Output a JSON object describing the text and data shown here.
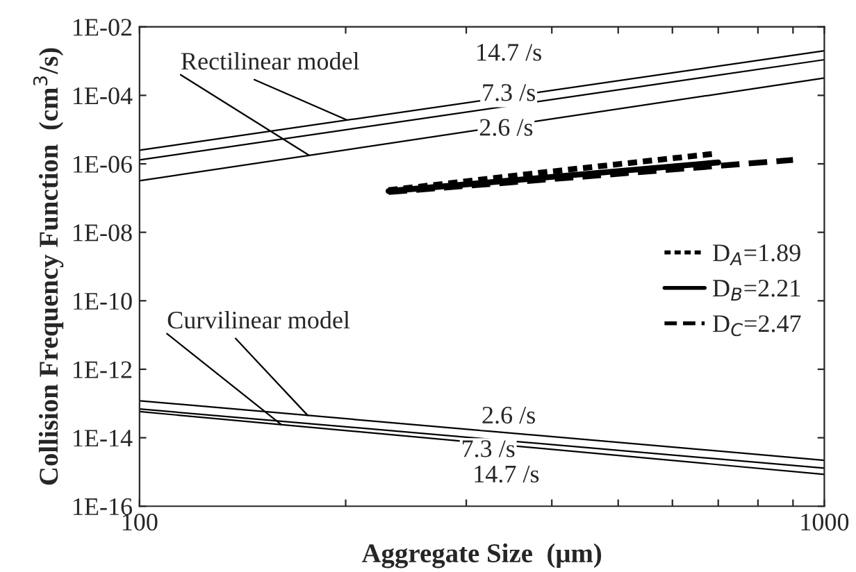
{
  "chart_data": {
    "type": "line",
    "xlabel": "Aggregate Size  (μm)",
    "ylabel": "Collision Frequency Function  (cm$^{3}$/s)",
    "log": "xy",
    "grid": false,
    "legend": "right",
    "xlim": [
      100,
      1000
    ],
    "xticks": [
      100,
      {
        "value": 200,
        "label": null
      },
      {
        "value": 300,
        "label": null
      },
      {
        "value": 400,
        "label": null
      },
      {
        "value": 500,
        "label": null
      },
      {
        "value": 600,
        "label": null
      },
      {
        "value": 700,
        "label": null
      },
      {
        "value": 800,
        "label": null
      },
      {
        "value": 900,
        "label": null
      },
      1000
    ],
    "ylim": [
      1e-16,
      0.01
    ],
    "yticks": [
      {
        "value": 1e-16,
        "label": "1E-16"
      },
      {
        "value": 1e-14,
        "label": "1E-14"
      },
      {
        "value": 1e-12,
        "label": "1E-12"
      },
      {
        "value": 1e-10,
        "label": "1E-10"
      },
      {
        "value": 1e-08,
        "label": "1E-08"
      },
      {
        "value": 1e-06,
        "label": "1E-06"
      },
      {
        "value": 0.0001,
        "label": "1E-04"
      },
      {
        "value": 0.01,
        "label": "1E-02"
      }
    ],
    "series": [
      {
        "color": "#000000",
        "line_style": "solid",
        "x": [
          100,
          1000
        ],
        "values": [
          2.5e-06,
          0.002
        ]
      },
      {
        "color": "#000000",
        "line_style": "solid",
        "x": [
          100,
          1000
        ],
        "values": [
          1.3e-06,
          0.0011
        ]
      },
      {
        "color": "#000000",
        "line_style": "solid",
        "x": [
          100,
          1000
        ],
        "values": [
          3.2e-07,
          0.00032
        ]
      },
      {
        "color": "#000000",
        "line_style": "solid",
        "x": [
          100,
          1000
        ],
        "values": [
          1.2e-13,
          2.2e-15
        ]
      },
      {
        "color": "#000000",
        "line_style": "solid",
        "x": [
          100,
          1000
        ],
        "values": [
          6.9e-14,
          1.3e-15
        ]
      },
      {
        "color": "#000000",
        "line_style": "solid",
        "x": [
          100,
          1000
        ],
        "values": [
          5.8e-14,
          8.5e-16
        ]
      },
      {
        "name": "D$_{A}$=1.89",
        "color": "#000000",
        "line_style": "dotted",
        "x": [
          231,
          400,
          695
        ],
        "values": [
          1.7e-07,
          6e-07,
          2e-06
        ]
      },
      {
        "name": "D$_{B}$=2.21",
        "color": "#000000",
        "line_style": "solid",
        "x": [
          231,
          700
        ],
        "values": [
          1.6e-07,
          1.1e-06
        ]
      },
      {
        "name": "D$_{C}$=2.47",
        "color": "#000000",
        "line_style": "dashed",
        "x": [
          231,
          900
        ],
        "values": [
          1.5e-07,
          1.3e-06
        ]
      }
    ],
    "annotations": [
      {
        "text": "Rectilinear model",
        "x": 201,
        "y": 1.9e-05
      },
      {
        "text": "Curvilinear model",
        "x": 176,
        "y": 4.5e-14
      },
      {
        "text": "14.7 /s",
        "x": 346,
        "y": 9e-05
      },
      {
        "text": "7.3 /s",
        "x": 346,
        "y": 4.8e-05
      },
      {
        "text": "2.6 /s",
        "x": 343,
        "y": 1.3e-05
      },
      {
        "text": "2.6 /s",
        "x": 346,
        "y": 1.4e-14
      },
      {
        "text": "7.3 /s",
        "x": 323,
        "y": 9e-15
      },
      {
        "text": "14.7 /s",
        "x": 343,
        "y": 6e-15
      }
    ]
  }
}
